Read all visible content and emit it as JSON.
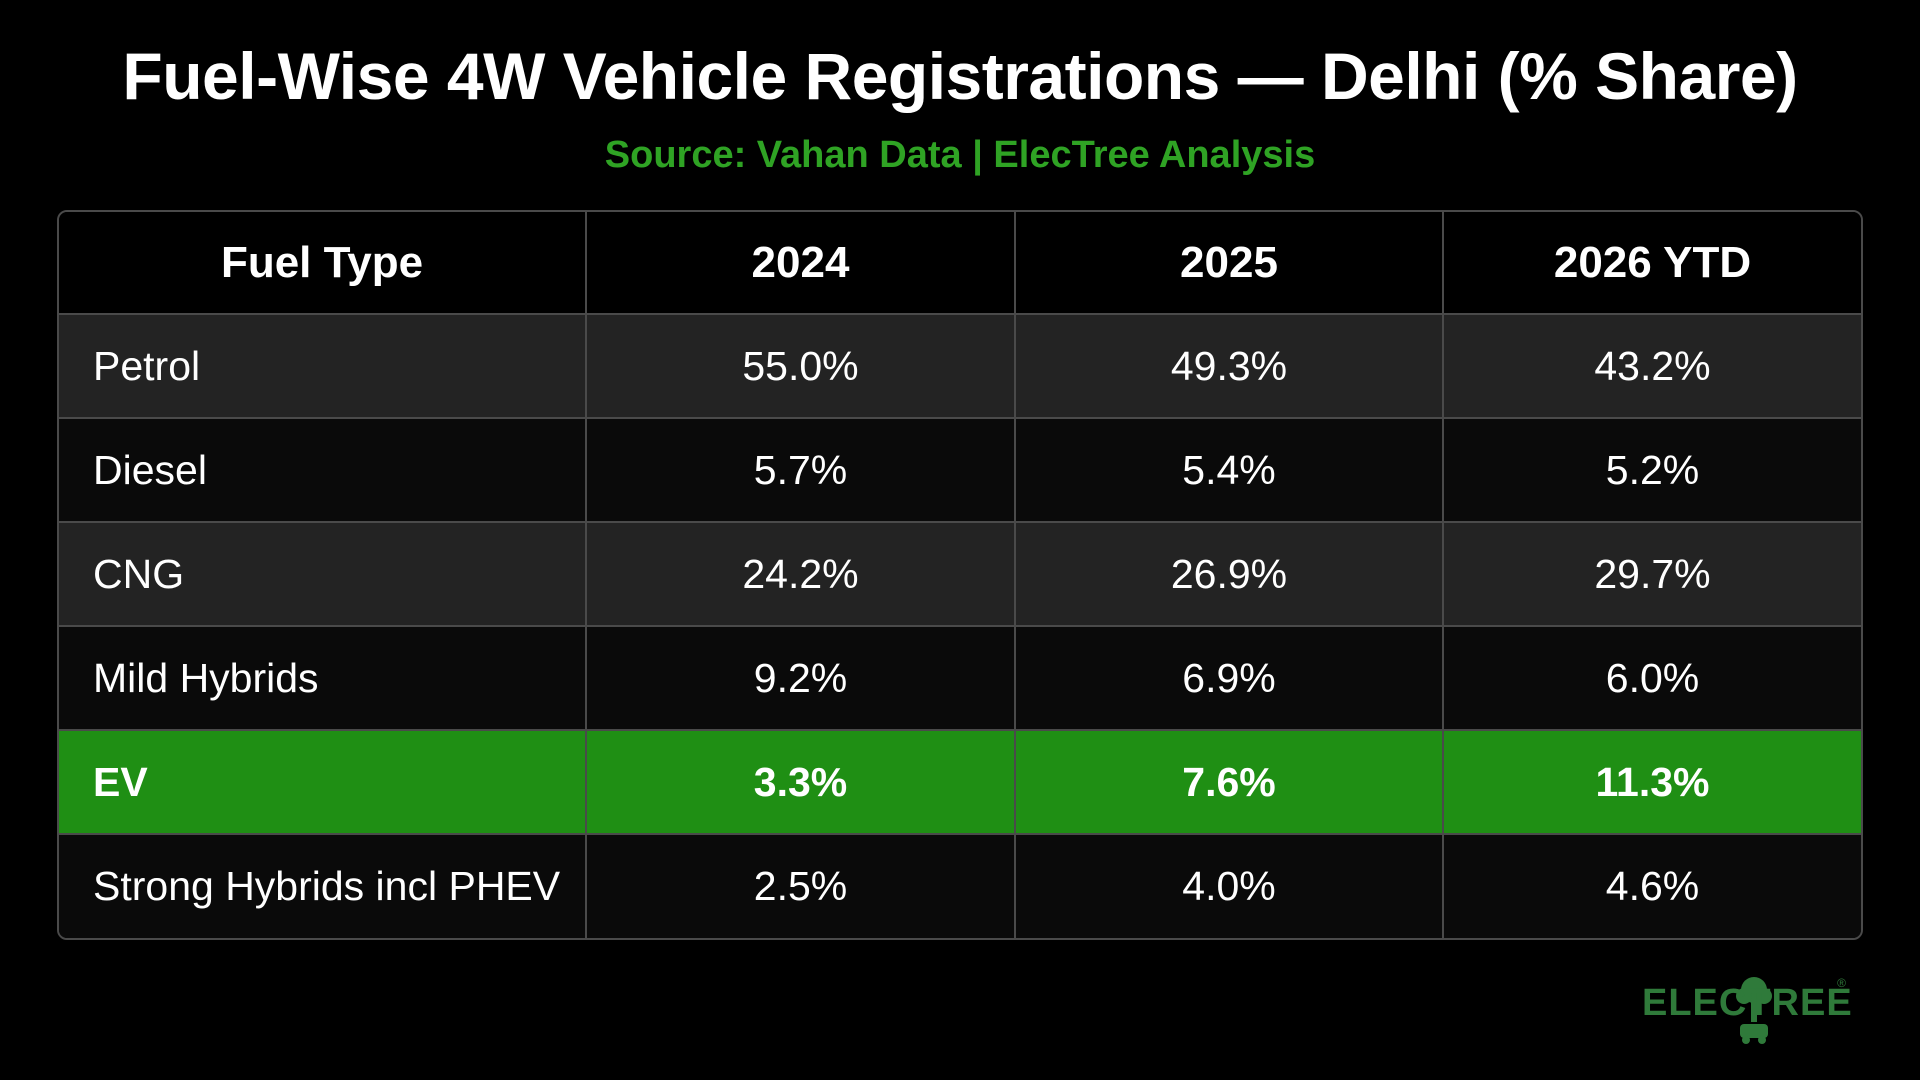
{
  "title": "Fuel-Wise 4W Vehicle Registrations — Delhi (% Share)",
  "subtitle": "Source: Vahan Data | ElecTree Analysis",
  "colors": {
    "background": "#000000",
    "accent_green": "#2fa324",
    "highlight_row": "#1f8f14",
    "row_dark": "#232323",
    "row_black": "#0a0a0a",
    "grid_line": "#4a4a4a",
    "logo": "#2f7a3a"
  },
  "chart_data": {
    "type": "table",
    "title": "Fuel-Wise 4W Vehicle Registrations — Delhi (% Share)",
    "subtitle": "Source: Vahan Data | ElecTree Analysis",
    "columns": [
      "Fuel Type",
      "2024",
      "2025",
      "2026 YTD"
    ],
    "rows": [
      {
        "fuel": "Petrol",
        "values": [
          "55.0%",
          "49.3%",
          "43.2%"
        ],
        "highlight": false
      },
      {
        "fuel": "Diesel",
        "values": [
          "5.7%",
          "5.4%",
          "5.2%"
        ],
        "highlight": false
      },
      {
        "fuel": "CNG",
        "values": [
          "24.2%",
          "26.9%",
          "29.7%"
        ],
        "highlight": false
      },
      {
        "fuel": "Mild Hybrids",
        "values": [
          "9.2%",
          "6.9%",
          "6.0%"
        ],
        "highlight": false
      },
      {
        "fuel": "EV",
        "values": [
          "3.3%",
          "7.6%",
          "11.3%"
        ],
        "highlight": true
      },
      {
        "fuel": "Strong Hybrids incl PHEV",
        "values": [
          "2.5%",
          "4.0%",
          "4.6%"
        ],
        "highlight": false
      }
    ]
  },
  "logo": {
    "text": "ELECTREE",
    "registered_mark": "®",
    "icon": "tree-car-icon"
  }
}
